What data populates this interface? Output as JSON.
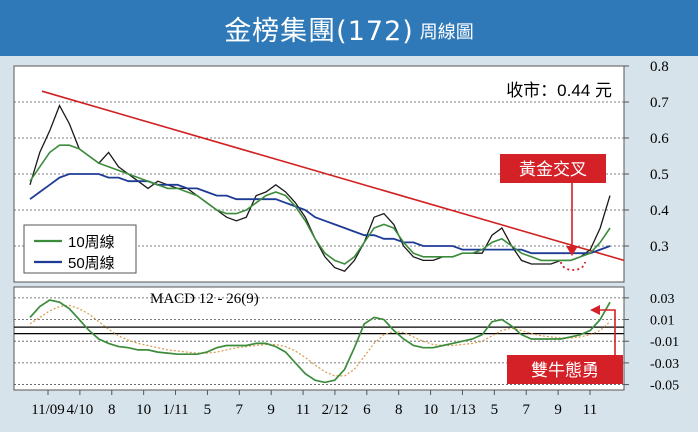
{
  "header": {
    "title": "金榜集團(172)",
    "subtitle": "周線圖"
  },
  "price_label": "收市：0.44 元",
  "callouts": {
    "golden_cross": "黃金交叉",
    "bullish": "雙牛態勇"
  },
  "macd_label": "MACD 12 - 26(9)",
  "colors": {
    "title_bg": "#2f79b8",
    "price": "#1a1a1a",
    "ma10": "#3c8c3c",
    "ma50": "#1e3c96",
    "trendline": "#d22020",
    "macd_line": "#3c8c3c",
    "macd_signal": "#d89a4a",
    "callout_bg": "#d42027"
  },
  "chart_data": [
    {
      "type": "line",
      "title": "",
      "x_tick_labels": [
        "11/09",
        "4/10",
        "8",
        "10",
        "1/11",
        "5",
        "7",
        "9",
        "11",
        "2/12",
        "6",
        "8",
        "10",
        "1/13",
        "5",
        "7",
        "9",
        "11"
      ],
      "y_ticks": [
        0.3,
        0.4,
        0.5,
        0.6,
        0.7,
        0.8
      ],
      "ylim": [
        0.2,
        0.8
      ],
      "legend": [
        "10周線",
        "50周線"
      ],
      "legend_position": "bottom-left",
      "series": [
        {
          "name": "",
          "values": [
            0.47,
            0.56,
            0.62,
            0.69,
            0.64,
            0.57,
            0.55,
            0.53,
            0.56,
            0.52,
            0.5,
            0.48,
            0.46,
            0.48,
            0.47,
            0.46,
            0.46,
            0.44,
            0.42,
            0.4,
            0.38,
            0.37,
            0.38,
            0.44,
            0.45,
            0.47,
            0.45,
            0.42,
            0.38,
            0.32,
            0.27,
            0.24,
            0.23,
            0.26,
            0.31,
            0.38,
            0.39,
            0.36,
            0.3,
            0.27,
            0.26,
            0.26,
            0.27,
            0.27,
            0.28,
            0.28,
            0.28,
            0.33,
            0.35,
            0.3,
            0.26,
            0.25,
            0.25,
            0.25,
            0.26,
            0.26,
            0.27,
            0.29,
            0.35,
            0.44
          ]
        },
        {
          "name": "10周線",
          "values": [
            0.48,
            0.52,
            0.56,
            0.58,
            0.58,
            0.57,
            0.55,
            0.53,
            0.52,
            0.51,
            0.5,
            0.49,
            0.48,
            0.47,
            0.46,
            0.46,
            0.45,
            0.44,
            0.42,
            0.4,
            0.39,
            0.39,
            0.4,
            0.42,
            0.44,
            0.45,
            0.44,
            0.41,
            0.37,
            0.32,
            0.28,
            0.26,
            0.25,
            0.27,
            0.31,
            0.35,
            0.36,
            0.35,
            0.31,
            0.28,
            0.27,
            0.27,
            0.27,
            0.27,
            0.28,
            0.28,
            0.29,
            0.31,
            0.32,
            0.3,
            0.28,
            0.27,
            0.26,
            0.26,
            0.26,
            0.26,
            0.27,
            0.28,
            0.31,
            0.35
          ]
        },
        {
          "name": "50周線",
          "values": [
            0.43,
            0.45,
            0.47,
            0.49,
            0.5,
            0.5,
            0.5,
            0.5,
            0.49,
            0.49,
            0.48,
            0.48,
            0.48,
            0.47,
            0.47,
            0.47,
            0.46,
            0.46,
            0.45,
            0.44,
            0.44,
            0.43,
            0.43,
            0.43,
            0.43,
            0.43,
            0.42,
            0.41,
            0.4,
            0.38,
            0.37,
            0.36,
            0.35,
            0.34,
            0.33,
            0.33,
            0.32,
            0.32,
            0.31,
            0.31,
            0.3,
            0.3,
            0.3,
            0.3,
            0.29,
            0.29,
            0.29,
            0.29,
            0.29,
            0.29,
            0.29,
            0.28,
            0.28,
            0.28,
            0.28,
            0.28,
            0.28,
            0.28,
            0.29,
            0.3
          ]
        }
      ],
      "trendline": {
        "start": [
          0,
          0.73
        ],
        "end": [
          59,
          0.26
        ]
      }
    },
    {
      "type": "line",
      "title": "MACD 12 - 26(9)",
      "y_tick_labels": [
        "0.03",
        "0.01",
        "-0.01",
        "-0.03",
        "-0.05"
      ],
      "y_ticks": [
        0.03,
        0.01,
        -0.01,
        -0.03,
        -0.05
      ],
      "ylim": [
        -0.055,
        0.04
      ],
      "series": [
        {
          "name": "",
          "values": [
            0.012,
            0.022,
            0.028,
            0.026,
            0.02,
            0.01,
            0.0,
            -0.008,
            -0.012,
            -0.015,
            -0.016,
            -0.018,
            -0.018,
            -0.02,
            -0.021,
            -0.022,
            -0.022,
            -0.022,
            -0.02,
            -0.016,
            -0.014,
            -0.014,
            -0.014,
            -0.012,
            -0.012,
            -0.015,
            -0.02,
            -0.03,
            -0.04,
            -0.046,
            -0.048,
            -0.046,
            -0.036,
            -0.016,
            0.006,
            0.012,
            0.01,
            0.0,
            -0.008,
            -0.014,
            -0.016,
            -0.016,
            -0.014,
            -0.012,
            -0.01,
            -0.008,
            -0.004,
            0.008,
            0.01,
            0.004,
            -0.004,
            -0.008,
            -0.008,
            -0.008,
            -0.008,
            -0.006,
            -0.004,
            0.0,
            0.01,
            0.026
          ]
        },
        {
          "name": "",
          "values": [
            0.006,
            0.012,
            0.018,
            0.022,
            0.023,
            0.02,
            0.015,
            0.008,
            0.001,
            -0.005,
            -0.009,
            -0.012,
            -0.014,
            -0.016,
            -0.018,
            -0.019,
            -0.02,
            -0.021,
            -0.021,
            -0.02,
            -0.018,
            -0.016,
            -0.015,
            -0.014,
            -0.013,
            -0.013,
            -0.015,
            -0.019,
            -0.025,
            -0.032,
            -0.038,
            -0.042,
            -0.042,
            -0.036,
            -0.024,
            -0.012,
            -0.004,
            -0.001,
            -0.002,
            -0.006,
            -0.01,
            -0.013,
            -0.014,
            -0.014,
            -0.013,
            -0.012,
            -0.01,
            -0.005,
            0.0,
            0.002,
            0.0,
            -0.003,
            -0.005,
            -0.006,
            -0.007,
            -0.007,
            -0.006,
            -0.004,
            0.0,
            0.008
          ]
        }
      ]
    }
  ]
}
